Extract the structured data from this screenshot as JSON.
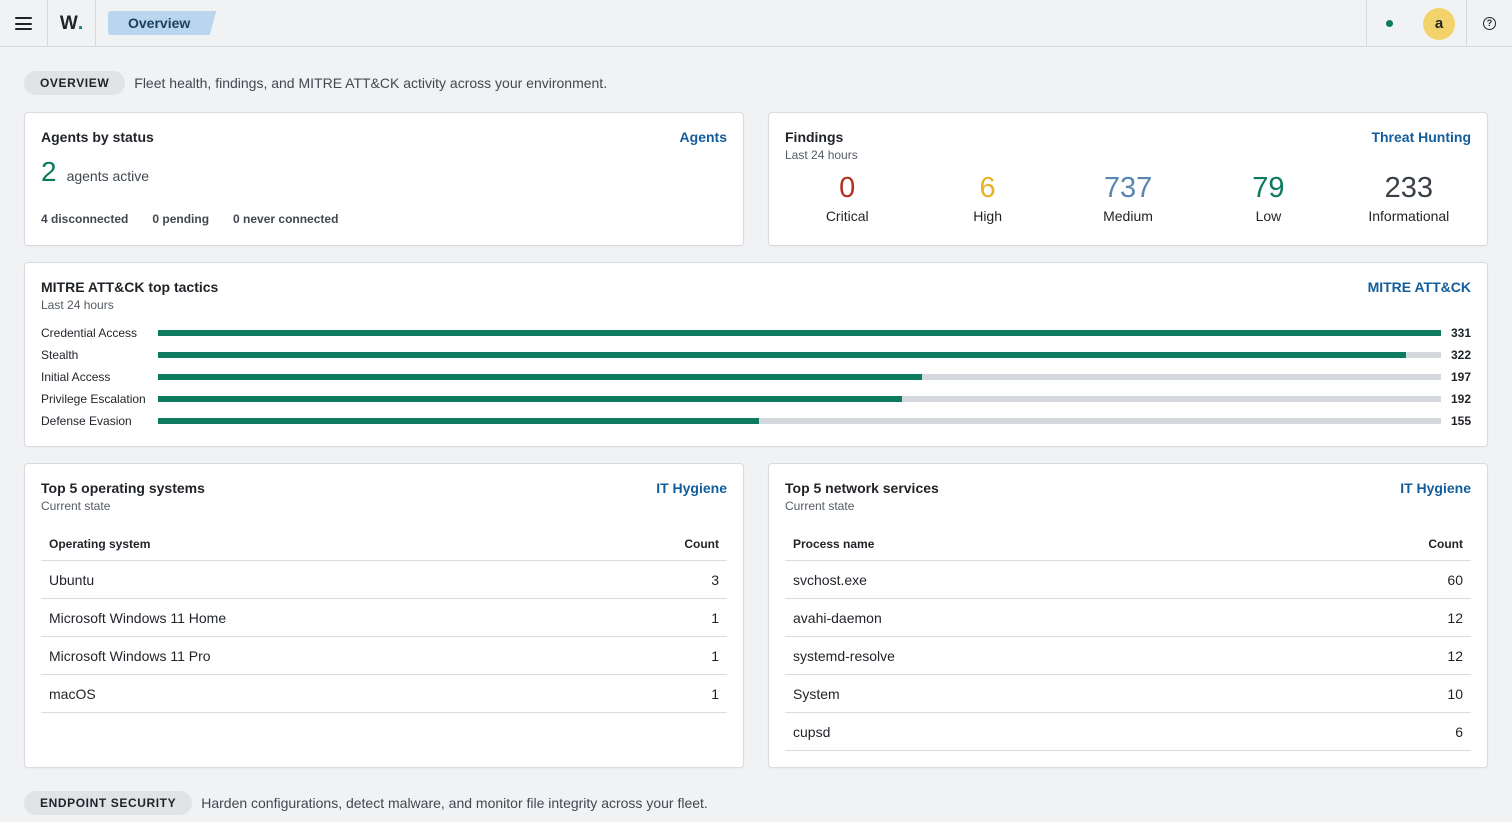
{
  "header": {
    "logo_text": "W",
    "logo_dot": ".",
    "breadcrumb": "Overview",
    "avatar_initial": "a",
    "help_glyph": "?",
    "status_color": "#0b7a5f"
  },
  "overview_section": {
    "label": "OVERVIEW",
    "description": "Fleet health, findings, and MITRE ATT&CK activity across your environment."
  },
  "agents": {
    "title": "Agents by status",
    "link": "Agents",
    "active_count": "2",
    "active_label": "agents active",
    "disconnected": "4 disconnected",
    "pending": "0 pending",
    "never_connected": "0 never connected"
  },
  "findings": {
    "title": "Findings",
    "subtitle": "Last 24 hours",
    "link": "Threat Hunting",
    "items": [
      {
        "value": "0",
        "label": "Critical",
        "color": "#b3311f"
      },
      {
        "value": "6",
        "label": "High",
        "color": "#e6b422"
      },
      {
        "value": "737",
        "label": "Medium",
        "color": "#5a87b2"
      },
      {
        "value": "79",
        "label": "Low",
        "color": "#0b7a5f"
      },
      {
        "value": "233",
        "label": "Informational",
        "color": "#3b4047"
      }
    ]
  },
  "mitre": {
    "title": "MITRE ATT&CK top tactics",
    "subtitle": "Last 24 hours",
    "link": "MITRE ATT&CK",
    "max": 331,
    "tactics": [
      {
        "label": "Credential Access",
        "value": 331
      },
      {
        "label": "Stealth",
        "value": 322
      },
      {
        "label": "Initial Access",
        "value": 197
      },
      {
        "label": "Privilege Escalation",
        "value": 192
      },
      {
        "label": "Defense Evasion",
        "value": 155
      }
    ]
  },
  "os_table": {
    "title": "Top 5 operating systems",
    "subtitle": "Current state",
    "link": "IT Hygiene",
    "col_name": "Operating system",
    "col_count": "Count",
    "rows": [
      {
        "name": "Ubuntu",
        "count": "3"
      },
      {
        "name": "Microsoft Windows 11 Home",
        "count": "1"
      },
      {
        "name": "Microsoft Windows 11 Pro",
        "count": "1"
      },
      {
        "name": "macOS",
        "count": "1"
      }
    ]
  },
  "net_table": {
    "title": "Top 5 network services",
    "subtitle": "Current state",
    "link": "IT Hygiene",
    "col_name": "Process name",
    "col_count": "Count",
    "rows": [
      {
        "name": "svchost.exe",
        "count": "60"
      },
      {
        "name": "avahi-daemon",
        "count": "12"
      },
      {
        "name": "systemd-resolve",
        "count": "12"
      },
      {
        "name": "System",
        "count": "10"
      },
      {
        "name": "cupsd",
        "count": "6"
      }
    ]
  },
  "endpoint_section": {
    "label": "ENDPOINT SECURITY",
    "description": "Harden configurations, detect malware, and monitor file integrity across your fleet."
  }
}
